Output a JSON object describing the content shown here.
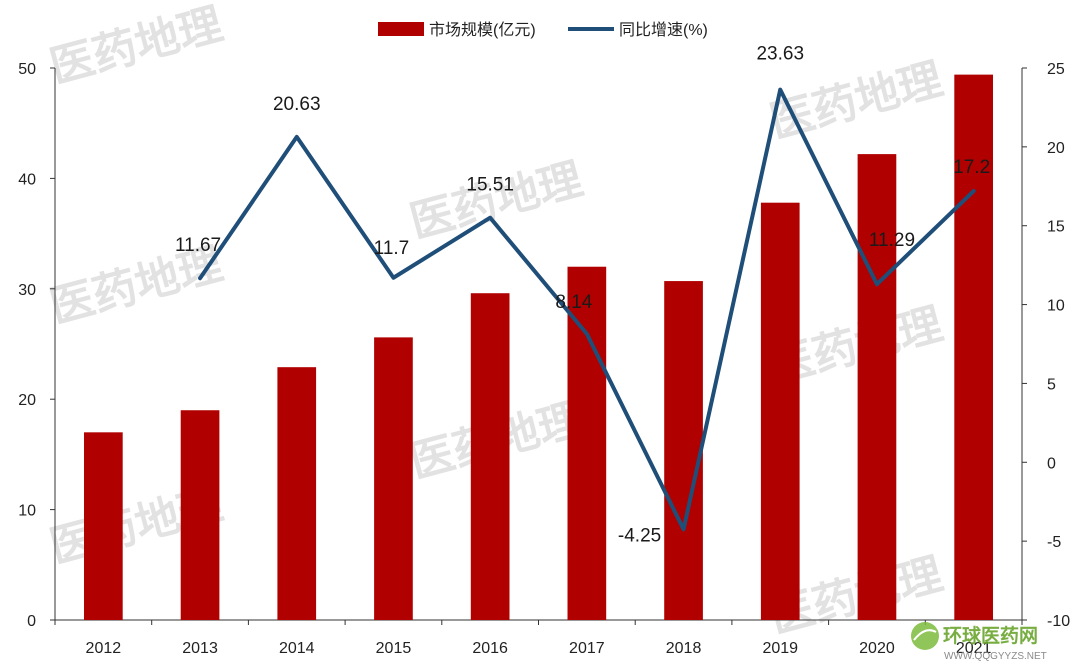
{
  "chart_data": {
    "type": "bar",
    "categories": [
      "2012",
      "2013",
      "2014",
      "2015",
      "2016",
      "2017",
      "2018",
      "2019",
      "2020",
      "2021"
    ],
    "series": [
      {
        "name": "市场规模(亿元)",
        "type": "bar",
        "axis": "left",
        "color": "#b00000",
        "values": [
          17.0,
          19.0,
          22.9,
          25.6,
          29.6,
          32.0,
          30.7,
          37.8,
          42.2,
          49.4
        ]
      },
      {
        "name": "同比增速(%)",
        "type": "line",
        "axis": "right",
        "color": "#1f4e79",
        "values": [
          null,
          11.67,
          20.63,
          11.7,
          15.51,
          8.14,
          -4.25,
          23.63,
          11.29,
          17.2
        ],
        "labels": [
          "",
          "11.67",
          "20.63",
          "11.7",
          "15.51",
          "8.14",
          "-4.25",
          "23.63",
          "11.29",
          "17.2"
        ]
      }
    ],
    "left_axis": {
      "min": 0,
      "max": 50,
      "ticks": [
        "0",
        "10",
        "20",
        "30",
        "40",
        "50"
      ]
    },
    "right_axis": {
      "min": -10,
      "max": 25,
      "ticks": [
        "-10",
        "-5",
        "0",
        "5",
        "10",
        "15",
        "20",
        "25"
      ]
    },
    "legend_position": "top-center",
    "grid": false
  },
  "watermark": {
    "text": "医药地理",
    "color": "#cccccc"
  },
  "logo": {
    "name": "环球医药网",
    "url": "WWW.QQGYYZS.NET",
    "icon": "leaf-globe-icon"
  }
}
